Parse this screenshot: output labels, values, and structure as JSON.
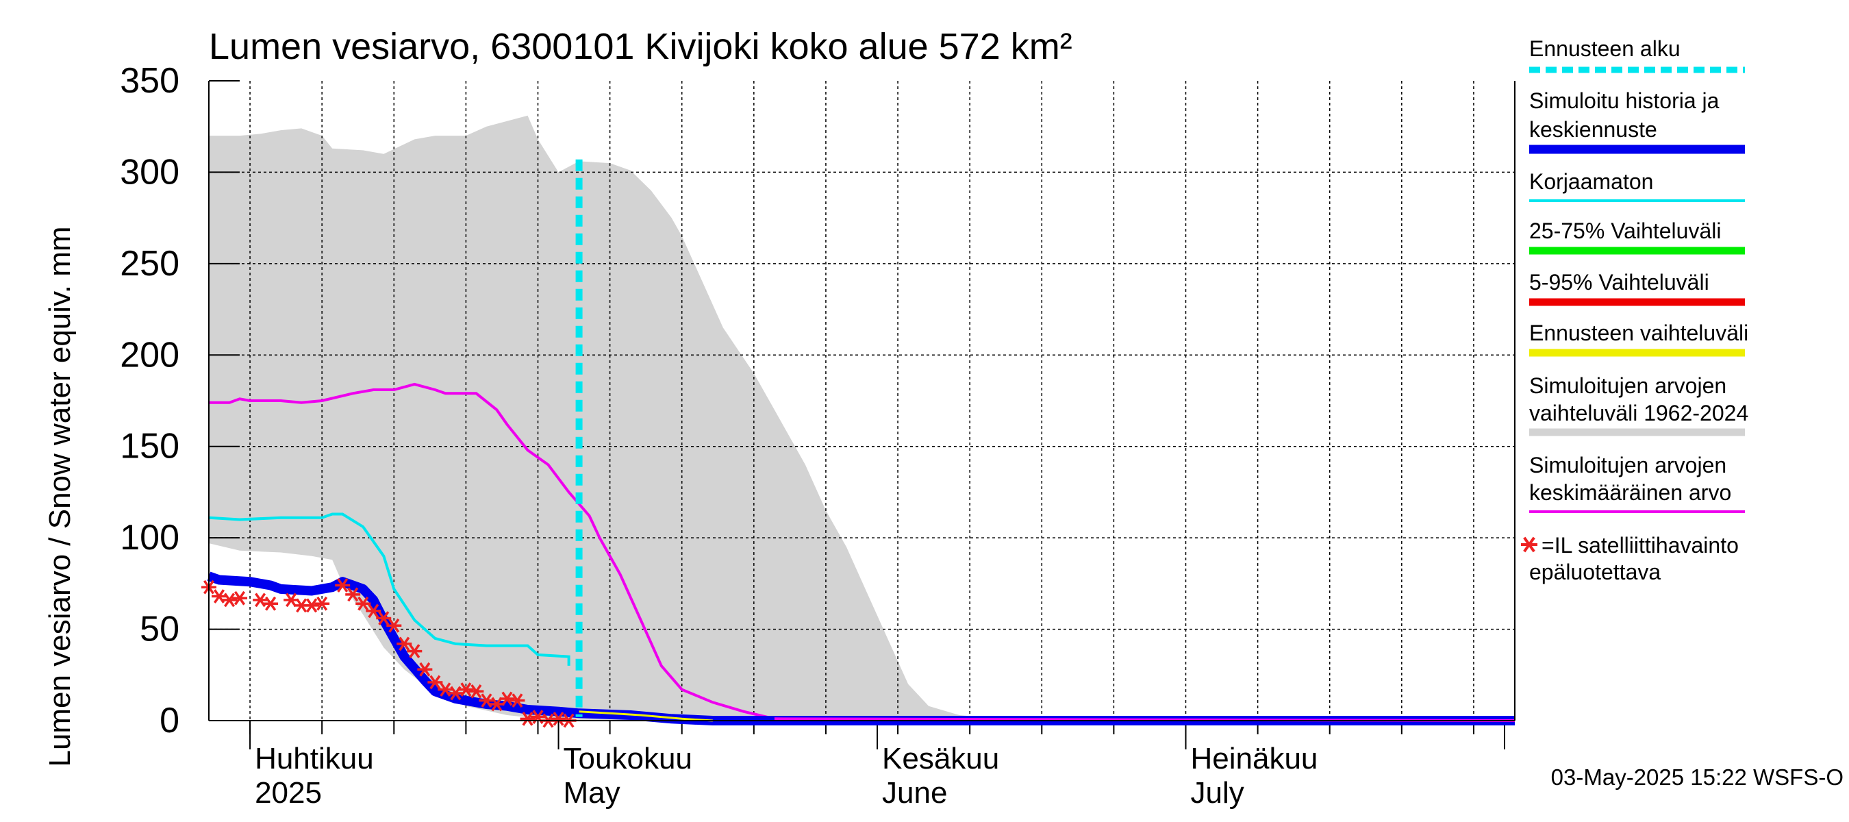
{
  "chart_data": {
    "type": "area",
    "title": "Lumen vesiarvo, 6300101 Kivijoki koko alue 572 km²",
    "ylabel": "Lumen vesiarvo / Snow water equiv.    mm",
    "ylim": [
      0,
      350
    ],
    "yticks": [
      0,
      50,
      100,
      150,
      200,
      250,
      300,
      350
    ],
    "xlim": [
      "2025-03-28",
      "2025-08-02"
    ],
    "grid": true,
    "month_labels": [
      {
        "date": "2025-04-01",
        "fi": "Huhtikuu",
        "en": "2025"
      },
      {
        "date": "2025-05-01",
        "fi": "Toukokuu",
        "en": "May"
      },
      {
        "date": "2025-06-01",
        "fi": "Kesäkuu",
        "en": "June"
      },
      {
        "date": "2025-07-01",
        "fi": "Heinäkuu",
        "en": "July"
      }
    ],
    "forecast_start": "2025-05-03",
    "timestamp": "03-May-2025 15:22 WSFS-O",
    "legend_position": "right",
    "legend": [
      {
        "label": "Ennusteen alku",
        "color": "#00e5ee",
        "style": "dashed"
      },
      {
        "label": "Simuloitu historia ja keskiennuste",
        "color": "#0000ee",
        "style": "thick"
      },
      {
        "label": "Korjaamaton",
        "color": "#00e5ee",
        "style": "line"
      },
      {
        "label": "25-75% Vaihteluväli",
        "color": "#00ee00",
        "style": "thick"
      },
      {
        "label": "5-95% Vaihteluväli",
        "color": "#ee0000",
        "style": "thick"
      },
      {
        "label": "Ennusteen vaihteluväli",
        "color": "#eeee00",
        "style": "thick"
      },
      {
        "label": "Simuloitujen arvojen vaihteluväli 1962-2024",
        "color": "#d3d3d3",
        "style": "thick"
      },
      {
        "label": "Simuloitujen arvojen keskimääräinen arvo",
        "color": "#ee00ee",
        "style": "line"
      },
      {
        "label": "=IL satelliittihavainto epäluotettava",
        "color": "#ee2222",
        "style": "marker"
      }
    ],
    "range_band": {
      "name": "Simuloitujen arvojen vaihteluväli 1962-2024",
      "upper": [
        [
          "2025-03-28",
          320
        ],
        [
          "2025-03-31",
          320
        ],
        [
          "2025-04-02",
          321
        ],
        [
          "2025-04-04",
          323
        ],
        [
          "2025-04-06",
          324
        ],
        [
          "2025-04-08",
          320
        ],
        [
          "2025-04-09",
          313
        ],
        [
          "2025-04-12",
          312
        ],
        [
          "2025-04-14",
          310
        ],
        [
          "2025-04-17",
          318
        ],
        [
          "2025-04-19",
          320
        ],
        [
          "2025-04-22",
          320
        ],
        [
          "2025-04-24",
          325
        ],
        [
          "2025-04-26",
          328
        ],
        [
          "2025-04-28",
          331
        ],
        [
          "2025-04-29",
          318
        ],
        [
          "2025-05-01",
          300
        ],
        [
          "2025-05-03",
          306
        ],
        [
          "2025-05-06",
          305
        ],
        [
          "2025-05-08",
          301
        ],
        [
          "2025-05-10",
          290
        ],
        [
          "2025-05-12",
          275
        ],
        [
          "2025-05-13",
          265
        ],
        [
          "2025-05-15",
          240
        ],
        [
          "2025-05-17",
          215
        ],
        [
          "2025-05-20",
          190
        ],
        [
          "2025-05-22",
          170
        ],
        [
          "2025-05-25",
          140
        ],
        [
          "2025-05-27",
          115
        ],
        [
          "2025-05-29",
          95
        ],
        [
          "2025-05-31",
          70
        ],
        [
          "2025-06-02",
          45
        ],
        [
          "2025-06-04",
          20
        ],
        [
          "2025-06-06",
          8
        ],
        [
          "2025-06-09",
          3
        ],
        [
          "2025-06-13",
          1
        ],
        [
          "2025-08-02",
          1
        ]
      ],
      "lower": [
        [
          "2025-03-28",
          97
        ],
        [
          "2025-03-31",
          93
        ],
        [
          "2025-04-04",
          92
        ],
        [
          "2025-04-07",
          90
        ],
        [
          "2025-04-09",
          88
        ],
        [
          "2025-04-10",
          75
        ],
        [
          "2025-04-12",
          58
        ],
        [
          "2025-04-14",
          40
        ],
        [
          "2025-04-16",
          28
        ],
        [
          "2025-04-19",
          15
        ],
        [
          "2025-04-22",
          8
        ],
        [
          "2025-04-26",
          3
        ],
        [
          "2025-05-01",
          0
        ],
        [
          "2025-08-02",
          0
        ]
      ]
    },
    "series": [
      {
        "name": "Simuloitujen arvojen keskimääräinen arvo",
        "color": "#ee00ee",
        "points": [
          [
            "2025-03-28",
            174
          ],
          [
            "2025-03-30",
            174
          ],
          [
            "2025-03-31",
            176
          ],
          [
            "2025-04-01",
            175
          ],
          [
            "2025-04-04",
            175
          ],
          [
            "2025-04-06",
            174
          ],
          [
            "2025-04-08",
            175
          ],
          [
            "2025-04-11",
            179
          ],
          [
            "2025-04-13",
            181
          ],
          [
            "2025-04-15",
            181
          ],
          [
            "2025-04-17",
            184
          ],
          [
            "2025-04-19",
            181
          ],
          [
            "2025-04-20",
            179
          ],
          [
            "2025-04-23",
            179
          ],
          [
            "2025-04-25",
            170
          ],
          [
            "2025-04-26",
            162
          ],
          [
            "2025-04-28",
            148
          ],
          [
            "2025-04-30",
            140
          ],
          [
            "2025-05-02",
            125
          ],
          [
            "2025-05-04",
            112
          ],
          [
            "2025-05-05",
            100
          ],
          [
            "2025-05-07",
            80
          ],
          [
            "2025-05-09",
            55
          ],
          [
            "2025-05-11",
            30
          ],
          [
            "2025-05-13",
            17
          ],
          [
            "2025-05-16",
            10
          ],
          [
            "2025-05-19",
            5
          ],
          [
            "2025-05-22",
            1
          ],
          [
            "2025-08-02",
            0
          ]
        ]
      },
      {
        "name": "Korjaamaton",
        "color": "#00e5ee",
        "points": [
          [
            "2025-03-28",
            111
          ],
          [
            "2025-03-31",
            110
          ],
          [
            "2025-04-04",
            111
          ],
          [
            "2025-04-08",
            111
          ],
          [
            "2025-04-09",
            113
          ],
          [
            "2025-04-10",
            113
          ],
          [
            "2025-04-12",
            106
          ],
          [
            "2025-04-14",
            90
          ],
          [
            "2025-04-15",
            72
          ],
          [
            "2025-04-17",
            55
          ],
          [
            "2025-04-19",
            45
          ],
          [
            "2025-04-21",
            42
          ],
          [
            "2025-04-24",
            41
          ],
          [
            "2025-04-26",
            41
          ],
          [
            "2025-04-28",
            41
          ],
          [
            "2025-04-29",
            36
          ],
          [
            "2025-05-02",
            35
          ],
          [
            "2025-05-02",
            30
          ]
        ]
      },
      {
        "name": "Simuloitu historia ja keskiennuste",
        "color": "#0000ee",
        "points": [
          [
            "2025-03-28",
            79
          ],
          [
            "2025-03-29",
            77
          ],
          [
            "2025-04-01",
            76
          ],
          [
            "2025-04-03",
            74
          ],
          [
            "2025-04-04",
            72
          ],
          [
            "2025-04-07",
            71
          ],
          [
            "2025-04-09",
            73
          ],
          [
            "2025-04-10",
            76
          ],
          [
            "2025-04-12",
            72
          ],
          [
            "2025-04-13",
            66
          ],
          [
            "2025-04-14",
            55
          ],
          [
            "2025-04-15",
            45
          ],
          [
            "2025-04-16",
            35
          ],
          [
            "2025-04-18",
            22
          ],
          [
            "2025-04-19",
            16
          ],
          [
            "2025-04-21",
            12
          ],
          [
            "2025-04-24",
            9
          ],
          [
            "2025-04-26",
            8
          ],
          [
            "2025-04-28",
            6
          ],
          [
            "2025-05-01",
            5
          ],
          [
            "2025-05-03",
            4
          ],
          [
            "2025-05-08",
            3
          ],
          [
            "2025-05-12",
            1
          ],
          [
            "2025-05-16",
            0
          ],
          [
            "2025-08-02",
            0
          ]
        ]
      }
    ],
    "forecast_band": {
      "name": "Ennusteen vaihteluväli",
      "color": "#eeee00",
      "points": [
        [
          "2025-05-03",
          5
        ],
        [
          "2025-05-06",
          4
        ],
        [
          "2025-05-09",
          3
        ],
        [
          "2025-05-13",
          1
        ],
        [
          "2025-05-16",
          0
        ]
      ]
    },
    "satellite_points": {
      "name": "=IL satelliittihavainto epäluotettava",
      "color": "#ee2222",
      "points": [
        [
          "2025-03-28",
          73
        ],
        [
          "2025-03-29",
          68
        ],
        [
          "2025-03-30",
          66
        ],
        [
          "2025-03-31",
          67
        ],
        [
          "2025-04-02",
          66
        ],
        [
          "2025-04-03",
          64
        ],
        [
          "2025-04-05",
          66
        ],
        [
          "2025-04-06",
          63
        ],
        [
          "2025-04-07",
          63
        ],
        [
          "2025-04-08",
          64
        ],
        [
          "2025-04-10",
          74
        ],
        [
          "2025-04-11",
          69
        ],
        [
          "2025-04-12",
          64
        ],
        [
          "2025-04-13",
          60
        ],
        [
          "2025-04-14",
          56
        ],
        [
          "2025-04-15",
          52
        ],
        [
          "2025-04-16",
          42
        ],
        [
          "2025-04-17",
          38
        ],
        [
          "2025-04-18",
          28
        ],
        [
          "2025-04-19",
          21
        ],
        [
          "2025-04-20",
          17
        ],
        [
          "2025-04-21",
          15
        ],
        [
          "2025-04-22",
          17
        ],
        [
          "2025-04-23",
          16
        ],
        [
          "2025-04-24",
          11
        ],
        [
          "2025-04-25",
          9
        ],
        [
          "2025-04-26",
          12
        ],
        [
          "2025-04-27",
          11
        ],
        [
          "2025-04-28",
          1
        ],
        [
          "2025-04-29",
          2
        ],
        [
          "2025-04-30",
          0
        ],
        [
          "2025-05-01",
          1
        ],
        [
          "2025-05-02",
          0
        ]
      ]
    }
  }
}
